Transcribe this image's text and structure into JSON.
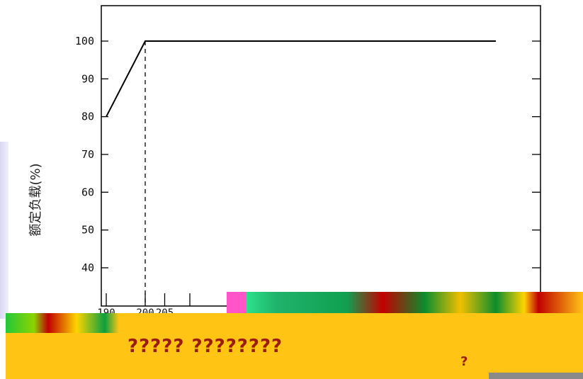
{
  "chart_data": {
    "type": "line",
    "ylabel": "额定负载(%)",
    "xlabel": "",
    "ylim": [
      30,
      110
    ],
    "y_ticks": [
      "100",
      "90",
      "80",
      "70",
      "60",
      "50",
      "40"
    ],
    "x_ticks": [
      "190",
      "200",
      "205"
    ],
    "series": [
      {
        "x": [
          190,
          200,
          290
        ],
        "values": [
          80,
          100,
          100
        ]
      }
    ],
    "reference_line": {
      "x": 200,
      "style": "dashed"
    },
    "grid": false
  },
  "overlay": {
    "line1": "????? ????????",
    "line2": "?"
  }
}
